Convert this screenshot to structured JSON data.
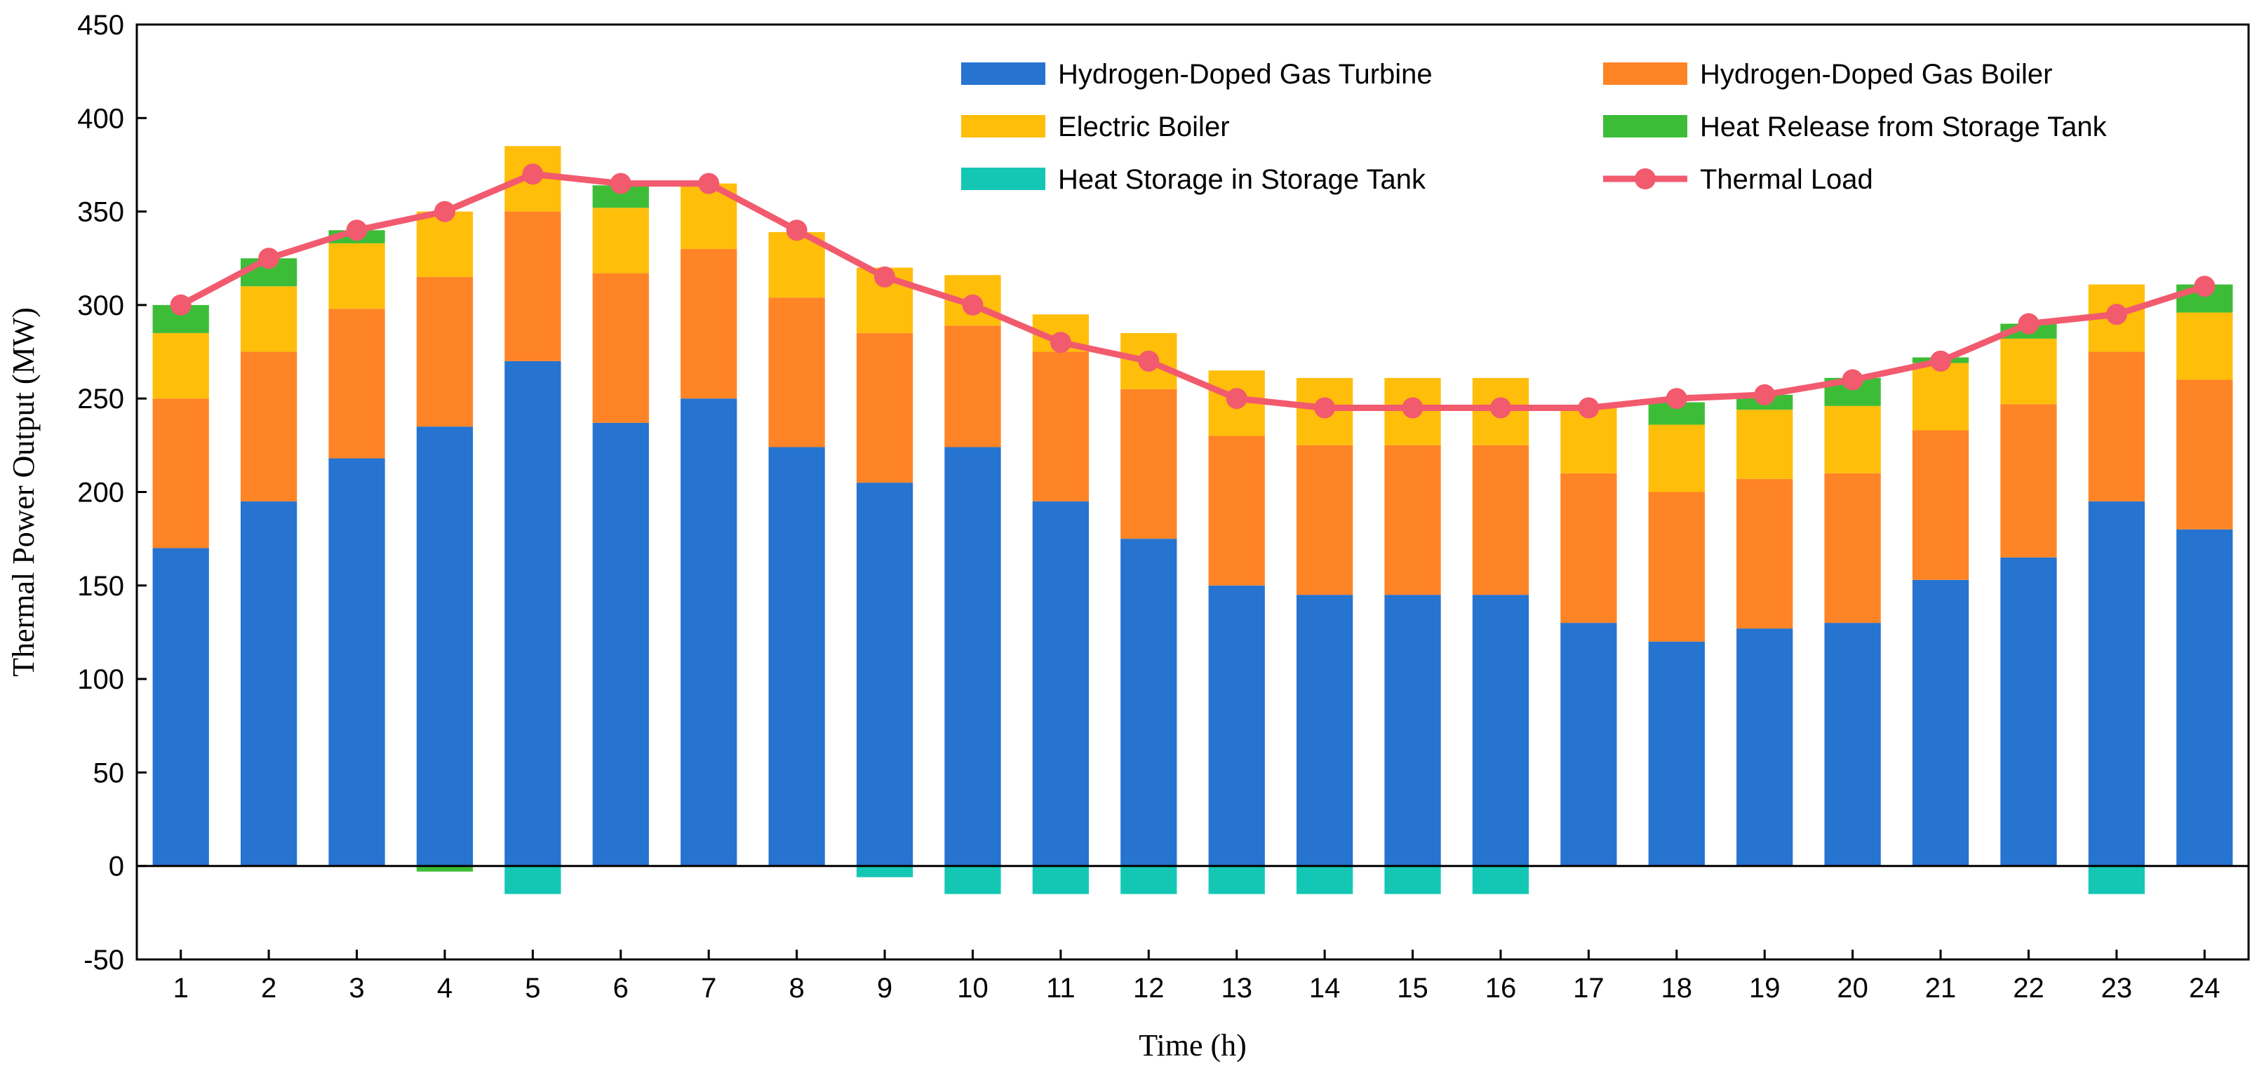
{
  "chart_data": {
    "type": "bar",
    "stacked": true,
    "title": "",
    "xlabel": "Time (h)",
    "ylabel": "Thermal Power Output (MW)",
    "ylim": [
      -50,
      450
    ],
    "yticks": [
      -50,
      0,
      50,
      100,
      150,
      200,
      250,
      300,
      350,
      400,
      450
    ],
    "categories": [
      "1",
      "2",
      "3",
      "4",
      "5",
      "6",
      "7",
      "8",
      "9",
      "10",
      "11",
      "12",
      "13",
      "14",
      "15",
      "16",
      "17",
      "18",
      "19",
      "20",
      "21",
      "22",
      "23",
      "24"
    ],
    "series": [
      {
        "name": "Hydrogen-Doped Gas Turbine",
        "color": "#2673D0",
        "values": [
          170,
          195,
          218,
          235,
          270,
          237,
          250,
          224,
          205,
          224,
          195,
          175,
          150,
          145,
          145,
          145,
          130,
          120,
          127,
          130,
          153,
          165,
          195,
          180
        ]
      },
      {
        "name": "Hydrogen-Doped Gas Boiler",
        "color": "#FF8426",
        "values": [
          80,
          80,
          80,
          80,
          80,
          80,
          80,
          80,
          80,
          65,
          80,
          80,
          80,
          80,
          80,
          80,
          80,
          80,
          80,
          80,
          80,
          82,
          80,
          80
        ]
      },
      {
        "name": "Electric Boiler",
        "color": "#FFBE0A",
        "values": [
          35,
          35,
          35,
          35,
          35,
          35,
          35,
          35,
          35,
          27,
          20,
          30,
          35,
          36,
          36,
          36,
          35,
          36,
          37,
          36,
          36,
          35,
          36,
          36
        ]
      },
      {
        "name": "Heat Release from Storage Tank",
        "color": "#3DBD37",
        "values": [
          15,
          15,
          7,
          0,
          0,
          12,
          0,
          0,
          0,
          0,
          0,
          0,
          0,
          0,
          0,
          0,
          0,
          12,
          8,
          15,
          3,
          8,
          0,
          15
        ]
      },
      {
        "name": "Heat Storage in Storage Tank",
        "color": "#14C7B4",
        "values": [
          0,
          0,
          0,
          0,
          -15,
          0,
          0,
          0,
          0,
          -15,
          -15,
          -15,
          -15,
          -15,
          -15,
          -15,
          0,
          0,
          0,
          0,
          0,
          0,
          -15,
          0
        ]
      },
      {
        "name": "Thermal Load",
        "type": "line",
        "color": "#F25A6E",
        "values": [
          300,
          325,
          340,
          350,
          370,
          365,
          365,
          340,
          315,
          300,
          280,
          270,
          250,
          245,
          245,
          245,
          245,
          250,
          252,
          260,
          270,
          290,
          295,
          310
        ]
      }
    ],
    "small_negative_marks": [
      {
        "category": "4",
        "value": -3,
        "color": "#3DBD37"
      },
      {
        "category": "9",
        "value": -6,
        "color": "#14C7B4"
      }
    ],
    "legend": {
      "position": "top-right",
      "entries": [
        {
          "label": "Hydrogen-Doped Gas Turbine",
          "swatch": "bar",
          "color": "#2673D0"
        },
        {
          "label": "Hydrogen-Doped Gas Boiler",
          "swatch": "bar",
          "color": "#FF8426"
        },
        {
          "label": "Electric Boiler",
          "swatch": "bar",
          "color": "#FFBE0A"
        },
        {
          "label": "Heat Release from Storage Tank",
          "swatch": "bar",
          "color": "#3DBD37"
        },
        {
          "label": "Heat Storage in Storage Tank",
          "swatch": "bar",
          "color": "#14C7B4"
        },
        {
          "label": "Thermal Load",
          "swatch": "line",
          "color": "#F25A6E"
        }
      ]
    }
  }
}
